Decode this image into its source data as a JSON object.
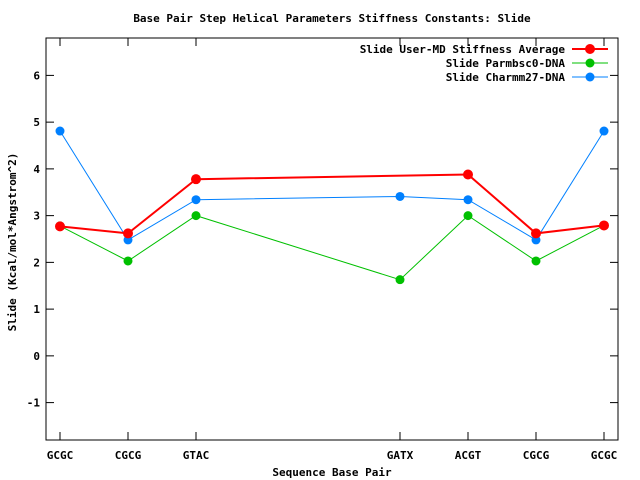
{
  "chart_data": {
    "type": "line",
    "title": "Base Pair Step Helical Parameters Stiffness Constants: Slide",
    "xlabel": "Sequence Base Pair",
    "ylabel": "Slide (Kcal/mol*Angstrom^2)",
    "categories": [
      {
        "label": "GCGC",
        "x": 0
      },
      {
        "label": "CGCG",
        "x": 1
      },
      {
        "label": "GTAC",
        "x": 2
      },
      {
        "label": "GATX",
        "x": 5
      },
      {
        "label": "ACGT",
        "x": 6
      },
      {
        "label": "CGCG",
        "x": 7
      },
      {
        "label": "GCGC",
        "x": 8
      }
    ],
    "xlim": [
      0,
      8
    ],
    "ylim": [
      -1.8,
      6.8
    ],
    "yticks": [
      -1,
      0,
      1,
      2,
      3,
      4,
      5,
      6
    ],
    "grid": false,
    "legend_position": "top-right",
    "series": [
      {
        "name": "Slide User-MD Stiffness Average",
        "color": "#ff0000",
        "style": "thick",
        "points": [
          [
            0,
            2.77
          ],
          [
            1,
            2.62
          ],
          [
            2,
            3.78
          ],
          [
            6,
            3.88
          ],
          [
            7,
            2.62
          ],
          [
            8,
            2.79
          ]
        ]
      },
      {
        "name": "Slide Parmbsc0-DNA",
        "color": "#00c000",
        "style": "thin",
        "points": [
          [
            0,
            2.78
          ],
          [
            1,
            2.03
          ],
          [
            2,
            3.0
          ],
          [
            5,
            1.63
          ],
          [
            6,
            3.0
          ],
          [
            7,
            2.03
          ],
          [
            8,
            2.79
          ]
        ]
      },
      {
        "name": "Slide Charmm27-DNA",
        "color": "#0080ff",
        "style": "thin",
        "points": [
          [
            0,
            4.81
          ],
          [
            1,
            2.48
          ],
          [
            2,
            3.34
          ],
          [
            5,
            3.41
          ],
          [
            6,
            3.34
          ],
          [
            7,
            2.48
          ],
          [
            8,
            4.81
          ]
        ]
      }
    ]
  }
}
